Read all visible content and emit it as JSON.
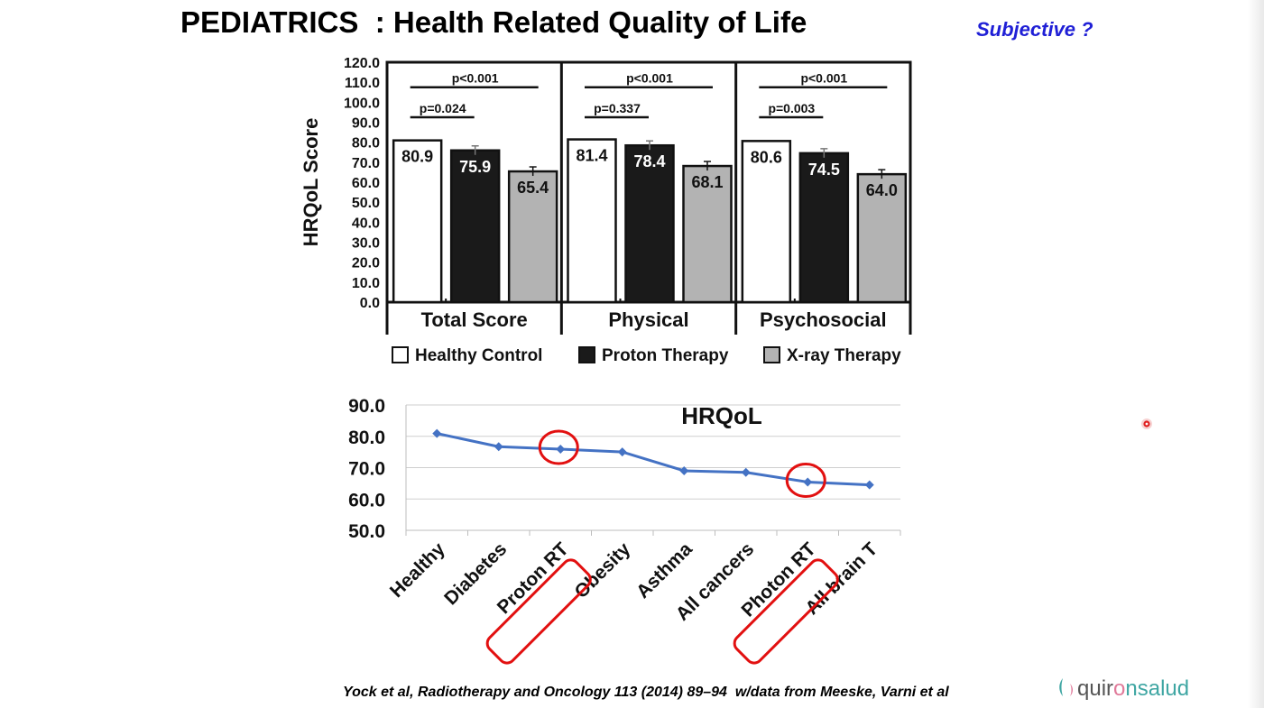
{
  "slide": {
    "title": "PEDIATRICS  : Health Related Quality of Life",
    "subtitle": "Subjective ?",
    "citation": "Yock et al, Radiotherapy and Oncology 113 (2014) 89–94  w/data from Meeske, Varni et al",
    "logo": {
      "part1": "quir",
      "part2": "nsalud"
    },
    "colors": {
      "title": "#000000",
      "subtitle": "#1f1fd6",
      "line": "#4472c4",
      "highlight": "#e21010",
      "brand": "#3fa6a3"
    }
  },
  "chart_data": [
    {
      "type": "bar",
      "ylabel": "HRQoL Score",
      "ylim": [
        0,
        120
      ],
      "yticks": [
        "0.0",
        "10.0",
        "20.0",
        "30.0",
        "40.0",
        "50.0",
        "60.0",
        "70.0",
        "80.0",
        "90.0",
        "100.0",
        "110.0",
        "120.0"
      ],
      "categories": [
        "Total Score",
        "Physical",
        "Psychosocial"
      ],
      "series": [
        {
          "name": "Healthy Control",
          "color": "#ffffff",
          "values": [
            80.9,
            81.4,
            80.6
          ],
          "labels": [
            "80.9",
            "81.4",
            "80.6"
          ]
        },
        {
          "name": "Proton Therapy",
          "color": "#1a1a1a",
          "values": [
            75.9,
            78.4,
            74.5
          ],
          "labels": [
            "75.9",
            "78.4",
            "74.5"
          ]
        },
        {
          "name": "X-ray Therapy",
          "color": "#b3b3b3",
          "values": [
            65.4,
            68.1,
            64.0
          ],
          "labels": [
            "65.4",
            "68.1",
            "64.0"
          ]
        }
      ],
      "annotations": [
        {
          "group": 0,
          "upper": "p<0.001",
          "lower": "p=0.024"
        },
        {
          "group": 1,
          "upper": "p<0.001",
          "lower": "p=0.337"
        },
        {
          "group": 2,
          "upper": "p<0.001",
          "lower": "p=0.003"
        }
      ],
      "legend": "bottom"
    },
    {
      "type": "line",
      "title": "HRQoL",
      "ylim": [
        50,
        90
      ],
      "yticks": [
        "50.0",
        "60.0",
        "70.0",
        "80.0",
        "90.0"
      ],
      "grid": true,
      "categories": [
        "Healthy",
        "Diabetes",
        "Proton RT",
        "Obesity",
        "Asthma",
        "All cancers",
        "Photon RT",
        "All brain T"
      ],
      "series": [
        {
          "values": [
            80.9,
            76.7,
            75.9,
            75.0,
            69.0,
            68.5,
            65.4,
            64.5
          ]
        }
      ],
      "highlighted": [
        "Proton RT",
        "Photon RT"
      ]
    }
  ]
}
